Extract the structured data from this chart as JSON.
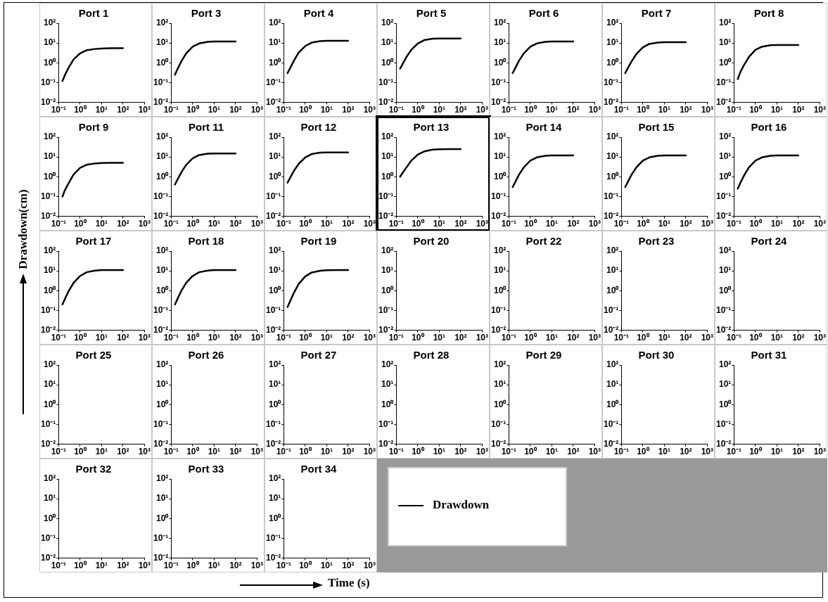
{
  "chart_data": [
    {
      "type": "line",
      "title": "Port 1",
      "legend": "bottom right",
      "log": "xy",
      "xlim": [
        0.1,
        1000
      ],
      "ylim": [
        0.01,
        100
      ],
      "xticks": [
        {
          "value": 0.1,
          "label": "10⁻¹"
        },
        {
          "value": 1,
          "label": "10⁰"
        },
        {
          "value": 10,
          "label": "10¹"
        },
        {
          "value": 100,
          "label": "10²"
        },
        {
          "value": 1000,
          "label": "10³"
        }
      ],
      "yticks": [
        {
          "value": 0.01,
          "label": "10⁻²"
        },
        {
          "value": 0.1,
          "label": "10⁻¹"
        },
        {
          "value": 1,
          "label": "10⁰"
        },
        {
          "value": 10,
          "label": "10¹"
        },
        {
          "value": 100,
          "label": "10²"
        }
      ],
      "x": [
        0.15,
        0.2,
        0.3,
        0.5,
        1,
        2,
        5,
        10,
        30,
        100
      ],
      "series": [
        {
          "name": "Drawdown",
          "color": "#000000",
          "values": [
            0.12,
            0.25,
            0.6,
            1.5,
            3,
            4.3,
            5,
            5.3,
            5.5,
            5.5
          ]
        }
      ]
    },
    {
      "type": "line",
      "title": "Port 3",
      "log": "xy",
      "xlim": [
        0.1,
        1000
      ],
      "ylim": [
        0.01,
        100
      ],
      "xticks": [
        {
          "value": 0.1,
          "label": "10⁻¹"
        },
        {
          "value": 1,
          "label": "10⁰"
        },
        {
          "value": 10,
          "label": "10¹"
        },
        {
          "value": 100,
          "label": "10²"
        },
        {
          "value": 1000,
          "label": "10³"
        }
      ],
      "yticks": [
        {
          "value": 0.01,
          "label": "10⁻²"
        },
        {
          "value": 0.1,
          "label": "10⁻¹"
        },
        {
          "value": 1,
          "label": "10⁰"
        },
        {
          "value": 10,
          "label": "10¹"
        },
        {
          "value": 100,
          "label": "10²"
        }
      ],
      "x": [
        0.15,
        0.2,
        0.3,
        0.5,
        1,
        2,
        5,
        10,
        30,
        100
      ],
      "series": [
        {
          "color": "#000000",
          "values": [
            0.25,
            0.5,
            1.2,
            3,
            6.5,
            9.5,
            11.5,
            12,
            12,
            12
          ]
        }
      ]
    },
    {
      "type": "line",
      "title": "Port 4",
      "log": "xy",
      "xlim": [
        0.1,
        1000
      ],
      "ylim": [
        0.01,
        100
      ],
      "xticks": [
        {
          "value": 0.1,
          "label": "10⁻¹"
        },
        {
          "value": 1,
          "label": "10⁰"
        },
        {
          "value": 10,
          "label": "10¹"
        },
        {
          "value": 100,
          "label": "10²"
        },
        {
          "value": 1000,
          "label": "10³"
        }
      ],
      "yticks": [
        {
          "value": 0.01,
          "label": "10⁻²"
        },
        {
          "value": 0.1,
          "label": "10⁻¹"
        },
        {
          "value": 1,
          "label": "10⁰"
        },
        {
          "value": 10,
          "label": "10¹"
        },
        {
          "value": 100,
          "label": "10²"
        }
      ],
      "x": [
        0.15,
        0.2,
        0.3,
        0.5,
        1,
        2,
        5,
        10,
        30,
        100
      ],
      "series": [
        {
          "color": "#000000",
          "values": [
            0.3,
            0.55,
            1.3,
            3.3,
            7,
            10.5,
            12.5,
            13,
            13,
            13
          ]
        }
      ]
    },
    {
      "type": "line",
      "title": "Port 5",
      "log": "xy",
      "xlim": [
        0.1,
        1000
      ],
      "ylim": [
        0.01,
        100
      ],
      "xticks": [
        {
          "value": 0.1,
          "label": "10⁻¹"
        },
        {
          "value": 1,
          "label": "10⁰"
        },
        {
          "value": 10,
          "label": "10¹"
        },
        {
          "value": 100,
          "label": "10²"
        },
        {
          "value": 1000,
          "label": "10³"
        }
      ],
      "yticks": [
        {
          "value": 0.01,
          "label": "10⁻²"
        },
        {
          "value": 0.1,
          "label": "10⁻¹"
        },
        {
          "value": 1,
          "label": "10⁰"
        },
        {
          "value": 10,
          "label": "10¹"
        },
        {
          "value": 100,
          "label": "10²"
        }
      ],
      "x": [
        0.15,
        0.2,
        0.3,
        0.5,
        1,
        2,
        5,
        10,
        30,
        100
      ],
      "series": [
        {
          "color": "#000000",
          "values": [
            0.5,
            0.9,
            2,
            4.5,
            9.5,
            14,
            16.5,
            17,
            17,
            17
          ]
        }
      ]
    },
    {
      "type": "line",
      "title": "Port 6",
      "log": "xy",
      "xlim": [
        0.1,
        1000
      ],
      "ylim": [
        0.01,
        100
      ],
      "xticks": [
        {
          "value": 0.1,
          "label": "10⁻¹"
        },
        {
          "value": 1,
          "label": "10⁰"
        },
        {
          "value": 10,
          "label": "10¹"
        },
        {
          "value": 100,
          "label": "10²"
        },
        {
          "value": 1000,
          "label": "10³"
        }
      ],
      "yticks": [
        {
          "value": 0.01,
          "label": "10⁻²"
        },
        {
          "value": 0.1,
          "label": "10⁻¹"
        },
        {
          "value": 1,
          "label": "10⁰"
        },
        {
          "value": 10,
          "label": "10¹"
        },
        {
          "value": 100,
          "label": "10²"
        }
      ],
      "x": [
        0.15,
        0.2,
        0.3,
        0.5,
        1,
        2,
        5,
        10,
        30,
        100
      ],
      "series": [
        {
          "color": "#000000",
          "values": [
            0.3,
            0.55,
            1.3,
            3,
            6.5,
            9.5,
            11.5,
            12,
            12,
            12
          ]
        }
      ]
    },
    {
      "type": "line",
      "title": "Port 7",
      "log": "xy",
      "xlim": [
        0.1,
        1000
      ],
      "ylim": [
        0.01,
        100
      ],
      "xticks": [
        {
          "value": 0.1,
          "label": "10⁻¹"
        },
        {
          "value": 1,
          "label": "10⁰"
        },
        {
          "value": 10,
          "label": "10¹"
        },
        {
          "value": 100,
          "label": "10²"
        },
        {
          "value": 1000,
          "label": "10³"
        }
      ],
      "yticks": [
        {
          "value": 0.01,
          "label": "10⁻²"
        },
        {
          "value": 0.1,
          "label": "10⁻¹"
        },
        {
          "value": 1,
          "label": "10⁰"
        },
        {
          "value": 10,
          "label": "10¹"
        },
        {
          "value": 100,
          "label": "10²"
        }
      ],
      "x": [
        0.15,
        0.2,
        0.3,
        0.5,
        1,
        2,
        5,
        10,
        30,
        100
      ],
      "series": [
        {
          "color": "#000000",
          "values": [
            0.3,
            0.55,
            1.2,
            2.8,
            6,
            9,
            10.5,
            11,
            11,
            11
          ]
        }
      ]
    },
    {
      "type": "line",
      "title": "Port 8",
      "log": "xy",
      "xlim": [
        0.1,
        1000
      ],
      "ylim": [
        0.01,
        100
      ],
      "xticks": [
        {
          "value": 0.1,
          "label": "10⁻¹"
        },
        {
          "value": 1,
          "label": "10⁰"
        },
        {
          "value": 10,
          "label": "10¹"
        },
        {
          "value": 100,
          "label": "10²"
        },
        {
          "value": 1000,
          "label": "10³"
        }
      ],
      "yticks": [
        {
          "value": 0.01,
          "label": "10⁻²"
        },
        {
          "value": 0.1,
          "label": "10⁻¹"
        },
        {
          "value": 1,
          "label": "10⁰"
        },
        {
          "value": 10,
          "label": "10¹"
        },
        {
          "value": 100,
          "label": "10²"
        }
      ],
      "x": [
        0.15,
        0.2,
        0.3,
        0.5,
        1,
        2,
        5,
        10,
        30,
        100
      ],
      "series": [
        {
          "color": "#000000",
          "values": [
            0.15,
            0.35,
            0.8,
            2,
            4.5,
            6.5,
            7.7,
            8,
            8,
            8
          ]
        }
      ]
    },
    {
      "type": "line",
      "title": "Port 9",
      "log": "xy",
      "xlim": [
        0.1,
        1000
      ],
      "ylim": [
        0.01,
        100
      ],
      "xticks": [
        {
          "value": 0.1,
          "label": "10⁻¹"
        },
        {
          "value": 1,
          "label": "10⁰"
        },
        {
          "value": 10,
          "label": "10¹"
        },
        {
          "value": 100,
          "label": "10²"
        },
        {
          "value": 1000,
          "label": "10³"
        }
      ],
      "yticks": [
        {
          "value": 0.01,
          "label": "10⁻²"
        },
        {
          "value": 0.1,
          "label": "10⁻¹"
        },
        {
          "value": 1,
          "label": "10⁰"
        },
        {
          "value": 10,
          "label": "10¹"
        },
        {
          "value": 100,
          "label": "10²"
        }
      ],
      "x": [
        0.15,
        0.2,
        0.3,
        0.5,
        1,
        2,
        5,
        10,
        30,
        100
      ],
      "series": [
        {
          "color": "#000000",
          "values": [
            0.1,
            0.22,
            0.5,
            1.3,
            2.8,
            4,
            4.7,
            4.9,
            5,
            5
          ]
        }
      ]
    },
    {
      "type": "line",
      "title": "Port 11",
      "log": "xy",
      "xlim": [
        0.1,
        1000
      ],
      "ylim": [
        0.01,
        100
      ],
      "xticks": [
        {
          "value": 0.1,
          "label": "10⁻¹"
        },
        {
          "value": 1,
          "label": "10⁰"
        },
        {
          "value": 10,
          "label": "10¹"
        },
        {
          "value": 100,
          "label": "10²"
        },
        {
          "value": 1000,
          "label": "10³"
        }
      ],
      "yticks": [
        {
          "value": 0.01,
          "label": "10⁻²"
        },
        {
          "value": 0.1,
          "label": "10⁻¹"
        },
        {
          "value": 1,
          "label": "10⁰"
        },
        {
          "value": 10,
          "label": "10¹"
        },
        {
          "value": 100,
          "label": "10²"
        }
      ],
      "x": [
        0.15,
        0.2,
        0.3,
        0.5,
        1,
        2,
        5,
        10,
        30,
        100
      ],
      "series": [
        {
          "color": "#000000",
          "values": [
            0.4,
            0.75,
            1.7,
            4,
            8.5,
            12.5,
            14.5,
            15,
            15,
            15
          ]
        }
      ]
    },
    {
      "type": "line",
      "title": "Port 12",
      "log": "xy",
      "xlim": [
        0.1,
        1000
      ],
      "ylim": [
        0.01,
        100
      ],
      "xticks": [
        {
          "value": 0.1,
          "label": "10⁻¹"
        },
        {
          "value": 1,
          "label": "10⁰"
        },
        {
          "value": 10,
          "label": "10¹"
        },
        {
          "value": 100,
          "label": "10²"
        },
        {
          "value": 1000,
          "label": "10³"
        }
      ],
      "yticks": [
        {
          "value": 0.01,
          "label": "10⁻²"
        },
        {
          "value": 0.1,
          "label": "10⁻¹"
        },
        {
          "value": 1,
          "label": "10⁰"
        },
        {
          "value": 10,
          "label": "10¹"
        },
        {
          "value": 100,
          "label": "10²"
        }
      ],
      "x": [
        0.15,
        0.2,
        0.3,
        0.5,
        1,
        2,
        5,
        10,
        30,
        100
      ],
      "series": [
        {
          "color": "#000000",
          "values": [
            0.5,
            0.9,
            2,
            4.5,
            9.5,
            14,
            16.5,
            17,
            17,
            17
          ]
        }
      ]
    },
    {
      "type": "line",
      "title": "Port 13",
      "log": "xy",
      "xlim": [
        0.1,
        1000
      ],
      "ylim": [
        0.01,
        100
      ],
      "xticks": [
        {
          "value": 0.1,
          "label": "10⁻¹"
        },
        {
          "value": 1,
          "label": "10⁰"
        },
        {
          "value": 10,
          "label": "10¹"
        },
        {
          "value": 100,
          "label": "10²"
        },
        {
          "value": 1000,
          "label": "10³"
        }
      ],
      "yticks": [
        {
          "value": 0.01,
          "label": "10⁻²"
        },
        {
          "value": 0.1,
          "label": "10⁻¹"
        },
        {
          "value": 1,
          "label": "10⁰"
        },
        {
          "value": 10,
          "label": "10¹"
        },
        {
          "value": 100,
          "label": "10²"
        }
      ],
      "x": [
        0.15,
        0.2,
        0.3,
        0.5,
        1,
        2,
        5,
        10,
        30,
        100
      ],
      "series": [
        {
          "color": "#000000",
          "values": [
            1,
            1.6,
            3,
            6.5,
            13,
            19,
            23.5,
            24.5,
            25,
            25
          ]
        }
      ]
    },
    {
      "type": "line",
      "title": "Port 14",
      "log": "xy",
      "xlim": [
        0.1,
        1000
      ],
      "ylim": [
        0.01,
        100
      ],
      "xticks": [
        {
          "value": 0.1,
          "label": "10⁻¹"
        },
        {
          "value": 1,
          "label": "10⁰"
        },
        {
          "value": 10,
          "label": "10¹"
        },
        {
          "value": 100,
          "label": "10²"
        },
        {
          "value": 1000,
          "label": "10³"
        }
      ],
      "yticks": [
        {
          "value": 0.01,
          "label": "10⁻²"
        },
        {
          "value": 0.1,
          "label": "10⁻¹"
        },
        {
          "value": 1,
          "label": "10⁰"
        },
        {
          "value": 10,
          "label": "10¹"
        },
        {
          "value": 100,
          "label": "10²"
        }
      ],
      "x": [
        0.15,
        0.2,
        0.3,
        0.5,
        1,
        2,
        5,
        10,
        30,
        100
      ],
      "series": [
        {
          "color": "#000000",
          "values": [
            0.3,
            0.55,
            1.3,
            3,
            6.5,
            9.5,
            11.5,
            12,
            12,
            12
          ]
        }
      ]
    },
    {
      "type": "line",
      "title": "Port 15",
      "log": "xy",
      "xlim": [
        0.1,
        1000
      ],
      "ylim": [
        0.01,
        100
      ],
      "xticks": [
        {
          "value": 0.1,
          "label": "10⁻¹"
        },
        {
          "value": 1,
          "label": "10⁰"
        },
        {
          "value": 10,
          "label": "10¹"
        },
        {
          "value": 100,
          "label": "10²"
        },
        {
          "value": 1000,
          "label": "10³"
        }
      ],
      "yticks": [
        {
          "value": 0.01,
          "label": "10⁻²"
        },
        {
          "value": 0.1,
          "label": "10⁻¹"
        },
        {
          "value": 1,
          "label": "10⁰"
        },
        {
          "value": 10,
          "label": "10¹"
        },
        {
          "value": 100,
          "label": "10²"
        }
      ],
      "x": [
        0.15,
        0.2,
        0.3,
        0.5,
        1,
        2,
        5,
        10,
        30,
        100
      ],
      "series": [
        {
          "color": "#000000",
          "values": [
            0.3,
            0.55,
            1.3,
            3,
            6.5,
            9.5,
            11.5,
            12,
            12,
            12
          ]
        }
      ]
    },
    {
      "type": "line",
      "title": "Port 16",
      "log": "xy",
      "xlim": [
        0.1,
        1000
      ],
      "ylim": [
        0.01,
        100
      ],
      "xticks": [
        {
          "value": 0.1,
          "label": "10⁻¹"
        },
        {
          "value": 1,
          "label": "10⁰"
        },
        {
          "value": 10,
          "label": "10¹"
        },
        {
          "value": 100,
          "label": "10²"
        },
        {
          "value": 1000,
          "label": "10³"
        }
      ],
      "yticks": [
        {
          "value": 0.01,
          "label": "10⁻²"
        },
        {
          "value": 0.1,
          "label": "10⁻¹"
        },
        {
          "value": 1,
          "label": "10⁰"
        },
        {
          "value": 10,
          "label": "10¹"
        },
        {
          "value": 100,
          "label": "10²"
        }
      ],
      "x": [
        0.15,
        0.2,
        0.3,
        0.5,
        1,
        2,
        5,
        10,
        30,
        100
      ],
      "series": [
        {
          "color": "#000000",
          "values": [
            0.25,
            0.5,
            1.2,
            3,
            6.5,
            9.5,
            11.5,
            12,
            12,
            12
          ]
        }
      ]
    },
    {
      "type": "line",
      "title": "Port 17",
      "log": "xy",
      "xlim": [
        0.1,
        1000
      ],
      "ylim": [
        0.01,
        100
      ],
      "xticks": [
        {
          "value": 0.1,
          "label": "10⁻¹"
        },
        {
          "value": 1,
          "label": "10⁰"
        },
        {
          "value": 10,
          "label": "10¹"
        },
        {
          "value": 100,
          "label": "10²"
        },
        {
          "value": 1000,
          "label": "10³"
        }
      ],
      "yticks": [
        {
          "value": 0.01,
          "label": "10⁻²"
        },
        {
          "value": 0.1,
          "label": "10⁻¹"
        },
        {
          "value": 1,
          "label": "10⁰"
        },
        {
          "value": 10,
          "label": "10¹"
        },
        {
          "value": 100,
          "label": "10²"
        }
      ],
      "x": [
        0.15,
        0.2,
        0.3,
        0.5,
        1,
        2,
        5,
        10,
        30,
        100
      ],
      "series": [
        {
          "color": "#000000",
          "values": [
            0.2,
            0.4,
            1,
            2.5,
            5.5,
            8.5,
            10.3,
            11,
            11,
            11
          ]
        }
      ]
    },
    {
      "type": "line",
      "title": "Port 18",
      "log": "xy",
      "xlim": [
        0.1,
        1000
      ],
      "ylim": [
        0.01,
        100
      ],
      "xticks": [
        {
          "value": 0.1,
          "label": "10⁻¹"
        },
        {
          "value": 1,
          "label": "10⁰"
        },
        {
          "value": 10,
          "label": "10¹"
        },
        {
          "value": 100,
          "label": "10²"
        },
        {
          "value": 1000,
          "label": "10³"
        }
      ],
      "yticks": [
        {
          "value": 0.01,
          "label": "10⁻²"
        },
        {
          "value": 0.1,
          "label": "10⁻¹"
        },
        {
          "value": 1,
          "label": "10⁰"
        },
        {
          "value": 10,
          "label": "10¹"
        },
        {
          "value": 100,
          "label": "10²"
        }
      ],
      "x": [
        0.15,
        0.2,
        0.3,
        0.5,
        1,
        2,
        5,
        10,
        30,
        100
      ],
      "series": [
        {
          "color": "#000000",
          "values": [
            0.2,
            0.4,
            1,
            2.5,
            5.5,
            8.5,
            10.3,
            11,
            11,
            11
          ]
        }
      ]
    },
    {
      "type": "line",
      "title": "Port 19",
      "log": "xy",
      "xlim": [
        0.1,
        1000
      ],
      "ylim": [
        0.01,
        100
      ],
      "xticks": [
        {
          "value": 0.1,
          "label": "10⁻¹"
        },
        {
          "value": 1,
          "label": "10⁰"
        },
        {
          "value": 10,
          "label": "10¹"
        },
        {
          "value": 100,
          "label": "10²"
        },
        {
          "value": 1000,
          "label": "10³"
        }
      ],
      "yticks": [
        {
          "value": 0.01,
          "label": "10⁻²"
        },
        {
          "value": 0.1,
          "label": "10⁻¹"
        },
        {
          "value": 1,
          "label": "10⁰"
        },
        {
          "value": 10,
          "label": "10¹"
        },
        {
          "value": 100,
          "label": "10²"
        }
      ],
      "x": [
        0.15,
        0.2,
        0.3,
        0.5,
        1,
        2,
        5,
        10,
        30,
        100
      ],
      "series": [
        {
          "color": "#000000",
          "values": [
            0.15,
            0.3,
            0.8,
            2.2,
            5.2,
            8.3,
            10.2,
            10.8,
            11,
            11
          ]
        }
      ]
    },
    {
      "type": "line",
      "title": "Port 20",
      "log": "xy",
      "xlim": [
        0.1,
        1000
      ],
      "ylim": [
        0.01,
        100
      ],
      "xticks": [
        {
          "value": 0.1,
          "label": "10⁻¹"
        },
        {
          "value": 1,
          "label": "10⁰"
        },
        {
          "value": 10,
          "label": "10¹"
        },
        {
          "value": 100,
          "label": "10²"
        },
        {
          "value": 1000,
          "label": "10³"
        }
      ],
      "yticks": [
        {
          "value": 0.01,
          "label": "10⁻²"
        },
        {
          "value": 0.1,
          "label": "10⁻¹"
        },
        {
          "value": 1,
          "label": "10⁰"
        },
        {
          "value": 10,
          "label": "10¹"
        },
        {
          "value": 100,
          "label": "10²"
        }
      ]
    },
    {
      "type": "line",
      "title": "Port 22",
      "log": "xy",
      "xlim": [
        0.1,
        1000
      ],
      "ylim": [
        0.01,
        100
      ],
      "xticks": [
        {
          "value": 0.1,
          "label": "10⁻¹"
        },
        {
          "value": 1,
          "label": "10⁰"
        },
        {
          "value": 10,
          "label": "10¹"
        },
        {
          "value": 100,
          "label": "10²"
        },
        {
          "value": 1000,
          "label": "10³"
        }
      ],
      "yticks": [
        {
          "value": 0.01,
          "label": "10⁻²"
        },
        {
          "value": 0.1,
          "label": "10⁻¹"
        },
        {
          "value": 1,
          "label": "10⁰"
        },
        {
          "value": 10,
          "label": "10¹"
        },
        {
          "value": 100,
          "label": "10²"
        }
      ]
    },
    {
      "type": "line",
      "title": "Port 23",
      "log": "xy",
      "xlim": [
        0.1,
        1000
      ],
      "ylim": [
        0.01,
        100
      ],
      "xticks": [
        {
          "value": 0.1,
          "label": "10⁻¹"
        },
        {
          "value": 1,
          "label": "10⁰"
        },
        {
          "value": 10,
          "label": "10¹"
        },
        {
          "value": 100,
          "label": "10²"
        },
        {
          "value": 1000,
          "label": "10³"
        }
      ],
      "yticks": [
        {
          "value": 0.01,
          "label": "10⁻²"
        },
        {
          "value": 0.1,
          "label": "10⁻¹"
        },
        {
          "value": 1,
          "label": "10⁰"
        },
        {
          "value": 10,
          "label": "10¹"
        },
        {
          "value": 100,
          "label": "10²"
        }
      ]
    },
    {
      "type": "line",
      "title": "Port 24",
      "log": "xy",
      "xlim": [
        0.1,
        1000
      ],
      "ylim": [
        0.01,
        100
      ],
      "xticks": [
        {
          "value": 0.1,
          "label": "10⁻¹"
        },
        {
          "value": 1,
          "label": "10⁰"
        },
        {
          "value": 10,
          "label": "10¹"
        },
        {
          "value": 100,
          "label": "10²"
        },
        {
          "value": 1000,
          "label": "10³"
        }
      ],
      "yticks": [
        {
          "value": 0.01,
          "label": "10⁻²"
        },
        {
          "value": 0.1,
          "label": "10⁻¹"
        },
        {
          "value": 1,
          "label": "10⁰"
        },
        {
          "value": 10,
          "label": "10¹"
        },
        {
          "value": 100,
          "label": "10²"
        }
      ]
    },
    {
      "type": "line",
      "title": "Port 25",
      "log": "xy",
      "xlim": [
        0.1,
        1000
      ],
      "ylim": [
        0.01,
        100
      ],
      "xticks": [
        {
          "value": 0.1,
          "label": "10⁻¹"
        },
        {
          "value": 1,
          "label": "10⁰"
        },
        {
          "value": 10,
          "label": "10¹"
        },
        {
          "value": 100,
          "label": "10²"
        },
        {
          "value": 1000,
          "label": "10³"
        }
      ],
      "yticks": [
        {
          "value": 0.01,
          "label": "10⁻²"
        },
        {
          "value": 0.1,
          "label": "10⁻¹"
        },
        {
          "value": 1,
          "label": "10⁰"
        },
        {
          "value": 10,
          "label": "10¹"
        },
        {
          "value": 100,
          "label": "10²"
        }
      ]
    },
    {
      "type": "line",
      "title": "Port 26",
      "log": "xy",
      "xlim": [
        0.1,
        1000
      ],
      "ylim": [
        0.01,
        100
      ],
      "xticks": [
        {
          "value": 0.1,
          "label": "10⁻¹"
        },
        {
          "value": 1,
          "label": "10⁰"
        },
        {
          "value": 10,
          "label": "10¹"
        },
        {
          "value": 100,
          "label": "10²"
        },
        {
          "value": 1000,
          "label": "10³"
        }
      ],
      "yticks": [
        {
          "value": 0.01,
          "label": "10⁻²"
        },
        {
          "value": 0.1,
          "label": "10⁻¹"
        },
        {
          "value": 1,
          "label": "10⁰"
        },
        {
          "value": 10,
          "label": "10¹"
        },
        {
          "value": 100,
          "label": "10²"
        }
      ]
    },
    {
      "type": "line",
      "title": "Port 27",
      "log": "xy",
      "xlim": [
        0.1,
        1000
      ],
      "ylim": [
        0.01,
        100
      ],
      "xticks": [
        {
          "value": 0.1,
          "label": "10⁻¹"
        },
        {
          "value": 1,
          "label": "10⁰"
        },
        {
          "value": 10,
          "label": "10¹"
        },
        {
          "value": 100,
          "label": "10²"
        },
        {
          "value": 1000,
          "label": "10³"
        }
      ],
      "yticks": [
        {
          "value": 0.01,
          "label": "10⁻²"
        },
        {
          "value": 0.1,
          "label": "10⁻¹"
        },
        {
          "value": 1,
          "label": "10⁰"
        },
        {
          "value": 10,
          "label": "10¹"
        },
        {
          "value": 100,
          "label": "10²"
        }
      ]
    },
    {
      "type": "line",
      "title": "Port 28",
      "log": "xy",
      "xlim": [
        0.1,
        1000
      ],
      "ylim": [
        0.01,
        100
      ],
      "xticks": [
        {
          "value": 0.1,
          "label": "10⁻¹"
        },
        {
          "value": 1,
          "label": "10⁰"
        },
        {
          "value": 10,
          "label": "10¹"
        },
        {
          "value": 100,
          "label": "10²"
        },
        {
          "value": 1000,
          "label": "10³"
        }
      ],
      "yticks": [
        {
          "value": 0.01,
          "label": "10⁻²"
        },
        {
          "value": 0.1,
          "label": "10⁻¹"
        },
        {
          "value": 1,
          "label": "10⁰"
        },
        {
          "value": 10,
          "label": "10¹"
        },
        {
          "value": 100,
          "label": "10²"
        }
      ]
    },
    {
      "type": "line",
      "title": "Port 29",
      "log": "xy",
      "xlim": [
        0.1,
        1000
      ],
      "ylim": [
        0.01,
        100
      ],
      "xticks": [
        {
          "value": 0.1,
          "label": "10⁻¹"
        },
        {
          "value": 1,
          "label": "10⁰"
        },
        {
          "value": 10,
          "label": "10¹"
        },
        {
          "value": 100,
          "label": "10²"
        },
        {
          "value": 1000,
          "label": "10³"
        }
      ],
      "yticks": [
        {
          "value": 0.01,
          "label": "10⁻²"
        },
        {
          "value": 0.1,
          "label": "10⁻¹"
        },
        {
          "value": 1,
          "label": "10⁰"
        },
        {
          "value": 10,
          "label": "10¹"
        },
        {
          "value": 100,
          "label": "10²"
        }
      ]
    },
    {
      "type": "line",
      "title": "Port 30",
      "log": "xy",
      "xlim": [
        0.1,
        1000
      ],
      "ylim": [
        0.01,
        100
      ],
      "xticks": [
        {
          "value": 0.1,
          "label": "10⁻¹"
        },
        {
          "value": 1,
          "label": "10⁰"
        },
        {
          "value": 10,
          "label": "10¹"
        },
        {
          "value": 100,
          "label": "10²"
        },
        {
          "value": 1000,
          "label": "10³"
        }
      ],
      "yticks": [
        {
          "value": 0.01,
          "label": "10⁻²"
        },
        {
          "value": 0.1,
          "label": "10⁻¹"
        },
        {
          "value": 1,
          "label": "10⁰"
        },
        {
          "value": 10,
          "label": "10¹"
        },
        {
          "value": 100,
          "label": "10²"
        }
      ]
    },
    {
      "type": "line",
      "title": "Port 31",
      "log": "xy",
      "xlim": [
        0.1,
        1000
      ],
      "ylim": [
        0.01,
        100
      ],
      "xticks": [
        {
          "value": 0.1,
          "label": "10⁻¹"
        },
        {
          "value": 1,
          "label": "10⁰"
        },
        {
          "value": 10,
          "label": "10¹"
        },
        {
          "value": 100,
          "label": "10²"
        },
        {
          "value": 1000,
          "label": "10³"
        }
      ],
      "yticks": [
        {
          "value": 0.01,
          "label": "10⁻²"
        },
        {
          "value": 0.1,
          "label": "10⁻¹"
        },
        {
          "value": 1,
          "label": "10⁰"
        },
        {
          "value": 10,
          "label": "10¹"
        },
        {
          "value": 100,
          "label": "10²"
        }
      ]
    },
    {
      "type": "line",
      "title": "Port 32",
      "log": "xy",
      "xlim": [
        0.1,
        1000
      ],
      "ylim": [
        0.01,
        100
      ],
      "xticks": [
        {
          "value": 0.1,
          "label": "10⁻¹"
        },
        {
          "value": 1,
          "label": "10⁰"
        },
        {
          "value": 10,
          "label": "10¹"
        },
        {
          "value": 100,
          "label": "10²"
        },
        {
          "value": 1000,
          "label": "10³"
        }
      ],
      "yticks": [
        {
          "value": 0.01,
          "label": "10⁻²"
        },
        {
          "value": 0.1,
          "label": "10⁻¹"
        },
        {
          "value": 1,
          "label": "10⁰"
        },
        {
          "value": 10,
          "label": "10¹"
        },
        {
          "value": 100,
          "label": "10²"
        }
      ]
    },
    {
      "type": "line",
      "title": "Port 33",
      "log": "xy",
      "xlim": [
        0.1,
        1000
      ],
      "ylim": [
        0.01,
        100
      ],
      "xticks": [
        {
          "value": 0.1,
          "label": "10⁻¹"
        },
        {
          "value": 1,
          "label": "10⁰"
        },
        {
          "value": 10,
          "label": "10¹"
        },
        {
          "value": 100,
          "label": "10²"
        },
        {
          "value": 1000,
          "label": "10³"
        }
      ],
      "yticks": [
        {
          "value": 0.01,
          "label": "10⁻²"
        },
        {
          "value": 0.1,
          "label": "10⁻¹"
        },
        {
          "value": 1,
          "label": "10⁰"
        },
        {
          "value": 10,
          "label": "10¹"
        },
        {
          "value": 100,
          "label": "10²"
        }
      ]
    },
    {
      "type": "line",
      "title": "Port 34",
      "log": "xy",
      "xlim": [
        0.1,
        1000
      ],
      "ylim": [
        0.01,
        100
      ],
      "xticks": [
        {
          "value": 0.1,
          "label": "10⁻¹"
        },
        {
          "value": 1,
          "label": "10⁰"
        },
        {
          "value": 10,
          "label": "10¹"
        },
        {
          "value": 100,
          "label": "10²"
        },
        {
          "value": 1000,
          "label": "10³"
        }
      ],
      "yticks": [
        {
          "value": 0.01,
          "label": "10⁻²"
        },
        {
          "value": 0.1,
          "label": "10⁻¹"
        },
        {
          "value": 1,
          "label": "10⁰"
        },
        {
          "value": 10,
          "label": "10¹"
        },
        {
          "value": 100,
          "label": "10²"
        }
      ]
    },
    {
      "type": "other",
      "xlabel": "Time (s)",
      "ylabel": "Drawdown(cm)"
    }
  ]
}
